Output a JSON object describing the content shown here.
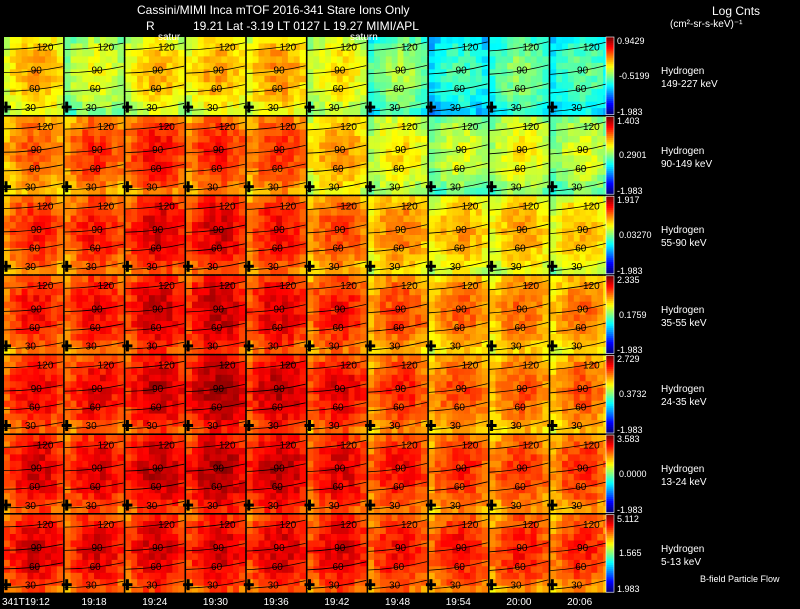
{
  "header": {
    "line1": "Cassini/MIMI Inca mTOF  2016-341    Stare    Ions Only",
    "line2_r": "R",
    "line2": "19.21 Lat -3.19 LT 0127 L       19.27  MIMI/APL",
    "saturn_left": "satur",
    "saturn_right": "saturn",
    "units_title": "Log Cnts",
    "units": "(cm²-sr-s-keV)⁻¹"
  },
  "footer": {
    "bfield": "B-field  Particle Flow"
  },
  "chart_data": {
    "type": "heatmap",
    "title": "Cassini/MIMI Inca mTOF 2016-341 Stare Ions Only",
    "time_labels": [
      "341T19:12",
      "19:18",
      "19:24",
      "19:30",
      "19:36",
      "19:42",
      "19:48",
      "19:54",
      "20:00",
      "20:06"
    ],
    "pitch_contours": [
      "120",
      "90",
      "60",
      "30"
    ],
    "rows": [
      {
        "species": "Hydrogen",
        "energy": "149-227 keV",
        "max": "0.9429",
        "mid": "-0.5199",
        "min": "-1.983",
        "levels": [
          0.72,
          0.62,
          0.7,
          0.72,
          0.74,
          0.66,
          0.55,
          0.45,
          0.52,
          0.48
        ]
      },
      {
        "species": "Hydrogen",
        "energy": "90-149 keV",
        "max": "1.403",
        "mid": "0.2901",
        "min": "-1.983",
        "levels": [
          0.8,
          0.84,
          0.88,
          0.86,
          0.84,
          0.74,
          0.66,
          0.6,
          0.64,
          0.6
        ]
      },
      {
        "species": "Hydrogen",
        "energy": "55-90 keV",
        "max": "1.917",
        "mid": "0.03270",
        "min": "-1.983",
        "levels": [
          0.86,
          0.87,
          0.92,
          0.92,
          0.88,
          0.82,
          0.76,
          0.72,
          0.72,
          0.7
        ]
      },
      {
        "species": "Hydrogen",
        "energy": "35-55 keV",
        "max": "2.335",
        "mid": "0.1759",
        "min": "-1.983",
        "levels": [
          0.88,
          0.89,
          0.93,
          0.94,
          0.91,
          0.87,
          0.82,
          0.79,
          0.78,
          0.77
        ]
      },
      {
        "species": "Hydrogen",
        "energy": "24-35 keV",
        "max": "2.729",
        "mid": "0.3732",
        "min": "-1.983",
        "levels": [
          0.9,
          0.9,
          0.94,
          0.96,
          0.94,
          0.9,
          0.85,
          0.82,
          0.8,
          0.8
        ]
      },
      {
        "species": "Hydrogen",
        "energy": "13-24 keV",
        "max": "3.583",
        "mid": "0.0000",
        "min": "-1.983",
        "levels": [
          0.92,
          0.91,
          0.94,
          0.96,
          0.95,
          0.91,
          0.88,
          0.85,
          0.84,
          0.84
        ]
      },
      {
        "species": "Hydrogen",
        "energy": "5-13 keV",
        "max": "5.112",
        "mid": "1.565",
        "min": "1.983",
        "levels": [
          0.92,
          0.91,
          0.92,
          0.92,
          0.92,
          0.91,
          0.88,
          0.87,
          0.86,
          0.85
        ]
      }
    ]
  }
}
